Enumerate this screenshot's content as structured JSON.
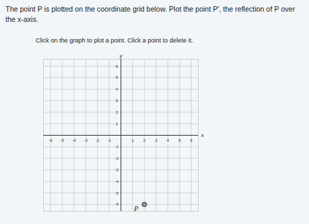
{
  "question": "The point P is plotted on the coordinate grid below. Plot the point P′, the reflection of P over the x-axis.",
  "instruction": "Click on the graph to plot a point. Click a point to delete it.",
  "chart_data": {
    "type": "scatter",
    "xlabel": "x",
    "ylabel": "y",
    "x": [
      2
    ],
    "values": [
      -6
    ],
    "labels": [
      "P"
    ],
    "color": "#9e9e9e",
    "xlim": [
      -6.6,
      6.6
    ],
    "ylim": [
      -6.6,
      6.6
    ],
    "xticks": [
      -6,
      -5,
      -4,
      -3,
      -2,
      -1,
      1,
      2,
      3,
      4,
      5,
      6
    ],
    "yticks": [
      -6,
      -5,
      -4,
      -3,
      -2,
      -1,
      1,
      2,
      3,
      4,
      5,
      6
    ],
    "grid": true
  }
}
